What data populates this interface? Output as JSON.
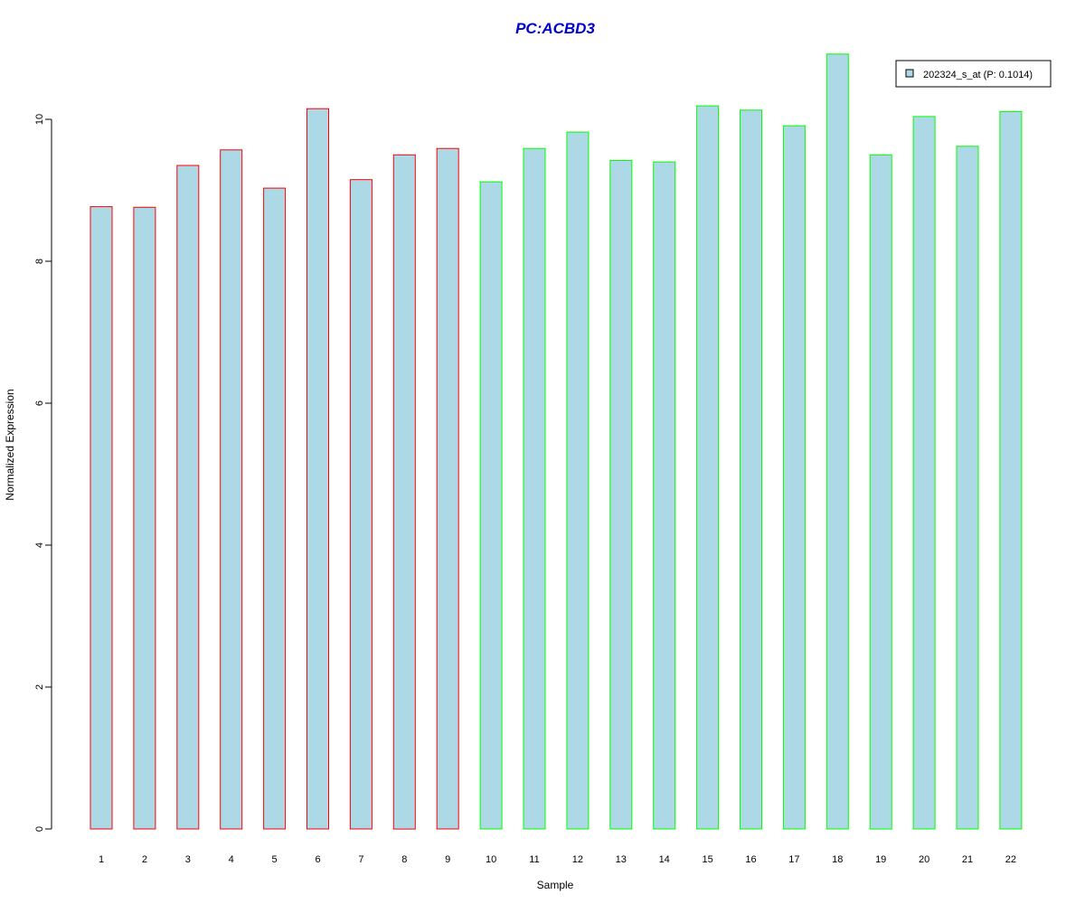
{
  "chart_data": {
    "type": "bar",
    "title": "PC:ACBD3",
    "xlabel": "Sample",
    "ylabel": "Normalized Expression",
    "categories": [
      "1",
      "2",
      "3",
      "4",
      "5",
      "6",
      "7",
      "8",
      "9",
      "10",
      "11",
      "12",
      "13",
      "14",
      "15",
      "16",
      "17",
      "18",
      "19",
      "20",
      "21",
      "22"
    ],
    "series": [
      {
        "name": "202324_s_at (P: 0.1014)",
        "values": [
          8.77,
          8.76,
          9.35,
          9.57,
          9.03,
          10.15,
          9.15,
          9.5,
          9.59,
          9.12,
          9.59,
          9.82,
          9.42,
          9.4,
          10.19,
          10.13,
          9.91,
          10.92,
          9.5,
          10.04,
          9.62,
          10.11
        ]
      }
    ],
    "ylim": [
      0,
      11
    ],
    "yticks": [
      0,
      2,
      4,
      6,
      8,
      10
    ],
    "legend_position": "top-right",
    "grid": false
  },
  "colors": {
    "title": "#0000CC",
    "bar_fill": "#ADD8E6",
    "group_1_border": "#FF0000",
    "group_2_border": "#00FF00",
    "legend_border": "#000000"
  },
  "groups": [
    "group_1_border",
    "group_1_border",
    "group_1_border",
    "group_1_border",
    "group_1_border",
    "group_1_border",
    "group_1_border",
    "group_1_border",
    "group_1_border",
    "group_2_border",
    "group_2_border",
    "group_2_border",
    "group_2_border",
    "group_2_border",
    "group_2_border",
    "group_2_border",
    "group_2_border",
    "group_2_border",
    "group_2_border",
    "group_2_border",
    "group_2_border",
    "group_2_border"
  ]
}
